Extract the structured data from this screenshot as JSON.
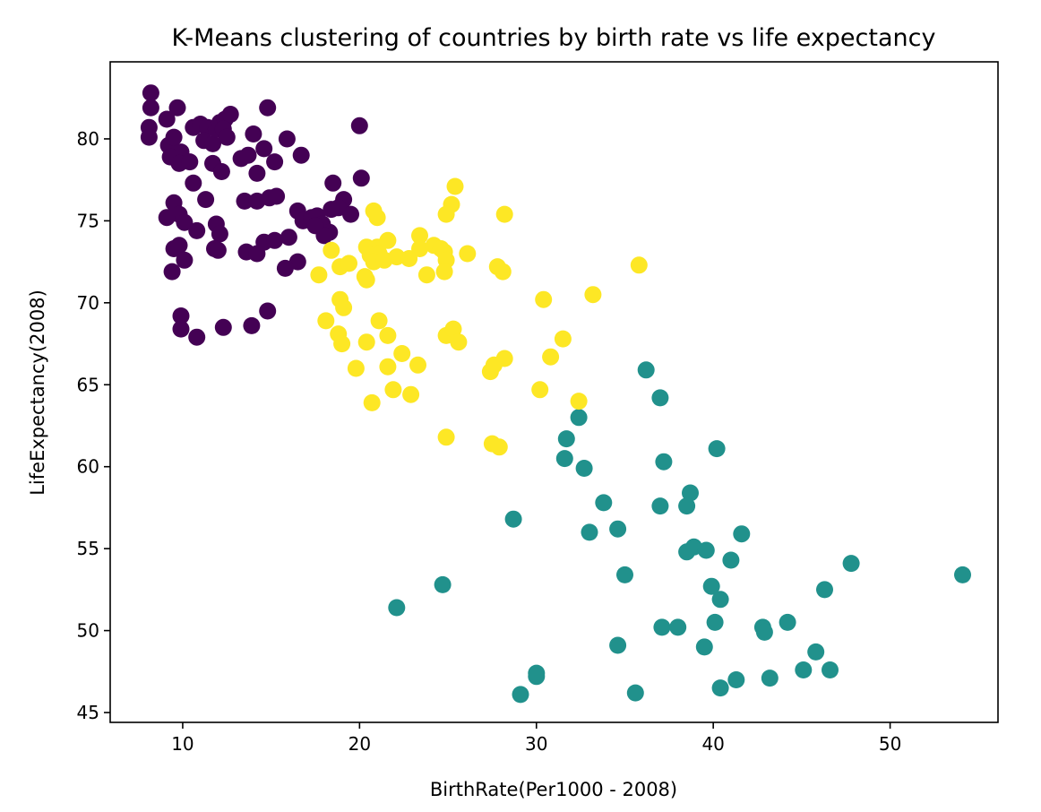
{
  "chart_data": {
    "type": "scatter",
    "title": "K-Means clustering of countries by birth rate vs life expectancy",
    "xlabel": "BirthRate(Per1000 - 2008)",
    "ylabel": "LifeExpectancy(2008)",
    "xlim": [
      5.9,
      56.1
    ],
    "ylim": [
      44.4,
      84.7
    ],
    "xticks": [
      10,
      20,
      30,
      40,
      50
    ],
    "yticks": [
      45,
      50,
      55,
      60,
      65,
      70,
      75,
      80
    ],
    "grid": false,
    "legend": "none",
    "series": [
      {
        "cluster": 0,
        "color": "#440154",
        "points": [
          [
            8.2,
            82.8
          ],
          [
            8.2,
            81.9
          ],
          [
            8.1,
            80.7
          ],
          [
            8.1,
            80.1
          ],
          [
            9.1,
            81.2
          ],
          [
            9.7,
            81.9
          ],
          [
            9.2,
            79.6
          ],
          [
            9.5,
            80.1
          ],
          [
            9.9,
            79.2
          ],
          [
            9.3,
            78.9
          ],
          [
            9.8,
            78.5
          ],
          [
            10.4,
            78.6
          ],
          [
            10.6,
            80.7
          ],
          [
            11.0,
            80.9
          ],
          [
            11.4,
            80.7
          ],
          [
            11.2,
            79.9
          ],
          [
            11.7,
            79.7
          ],
          [
            11.9,
            80.6
          ],
          [
            12.1,
            81.0
          ],
          [
            12.4,
            81.2
          ],
          [
            12.7,
            81.5
          ],
          [
            12.3,
            80.6
          ],
          [
            12.5,
            80.1
          ],
          [
            11.7,
            78.5
          ],
          [
            12.2,
            78.0
          ],
          [
            13.3,
            78.8
          ],
          [
            13.7,
            79.0
          ],
          [
            14.0,
            80.3
          ],
          [
            14.6,
            79.4
          ],
          [
            15.2,
            78.6
          ],
          [
            14.8,
            81.9
          ],
          [
            15.9,
            80.0
          ],
          [
            16.7,
            79.0
          ],
          [
            14.2,
            77.9
          ],
          [
            10.6,
            77.3
          ],
          [
            11.3,
            76.3
          ],
          [
            9.5,
            76.1
          ],
          [
            9.8,
            75.4
          ],
          [
            9.1,
            75.2
          ],
          [
            10.1,
            74.9
          ],
          [
            10.8,
            74.4
          ],
          [
            11.9,
            74.8
          ],
          [
            12.1,
            74.2
          ],
          [
            11.8,
            73.3
          ],
          [
            12.0,
            73.2
          ],
          [
            9.5,
            73.3
          ],
          [
            9.8,
            73.5
          ],
          [
            10.1,
            72.6
          ],
          [
            9.4,
            71.9
          ],
          [
            13.5,
            76.2
          ],
          [
            14.2,
            76.2
          ],
          [
            14.9,
            76.4
          ],
          [
            15.3,
            76.5
          ],
          [
            16.5,
            75.6
          ],
          [
            16.8,
            75.0
          ],
          [
            17.3,
            75.2
          ],
          [
            17.6,
            75.3
          ],
          [
            17.9,
            74.8
          ],
          [
            18.3,
            74.3
          ],
          [
            18.0,
            74.1
          ],
          [
            17.5,
            74.7
          ],
          [
            18.5,
            77.3
          ],
          [
            19.1,
            76.3
          ],
          [
            18.8,
            75.8
          ],
          [
            19.5,
            75.4
          ],
          [
            18.4,
            75.7
          ],
          [
            20.1,
            77.6
          ],
          [
            20.0,
            80.8
          ],
          [
            13.6,
            73.1
          ],
          [
            14.2,
            73.0
          ],
          [
            14.6,
            73.7
          ],
          [
            15.2,
            73.8
          ],
          [
            16.0,
            74.0
          ],
          [
            16.5,
            72.5
          ],
          [
            15.8,
            72.1
          ],
          [
            9.9,
            69.2
          ],
          [
            9.9,
            68.4
          ],
          [
            10.8,
            67.9
          ],
          [
            12.3,
            68.5
          ],
          [
            13.9,
            68.6
          ],
          [
            14.8,
            69.5
          ]
        ]
      },
      {
        "cluster": 1,
        "color": "#21918c",
        "points": [
          [
            36.2,
            65.9
          ],
          [
            37.0,
            64.2
          ],
          [
            32.4,
            63.0
          ],
          [
            31.7,
            61.7
          ],
          [
            31.6,
            60.5
          ],
          [
            32.7,
            59.9
          ],
          [
            37.2,
            60.3
          ],
          [
            40.2,
            61.1
          ],
          [
            33.8,
            57.8
          ],
          [
            37.0,
            57.6
          ],
          [
            38.7,
            58.4
          ],
          [
            38.5,
            57.6
          ],
          [
            28.7,
            56.8
          ],
          [
            33.0,
            56.0
          ],
          [
            34.6,
            56.2
          ],
          [
            38.5,
            54.8
          ],
          [
            38.9,
            55.1
          ],
          [
            39.6,
            54.9
          ],
          [
            41.6,
            55.9
          ],
          [
            41.0,
            54.3
          ],
          [
            35.0,
            53.4
          ],
          [
            39.9,
            52.7
          ],
          [
            40.4,
            51.9
          ],
          [
            46.3,
            52.5
          ],
          [
            47.8,
            54.1
          ],
          [
            54.1,
            53.4
          ],
          [
            24.7,
            52.8
          ],
          [
            22.1,
            51.4
          ],
          [
            37.1,
            50.2
          ],
          [
            38.0,
            50.2
          ],
          [
            40.1,
            50.5
          ],
          [
            42.8,
            50.2
          ],
          [
            42.9,
            49.9
          ],
          [
            44.2,
            50.5
          ],
          [
            34.6,
            49.1
          ],
          [
            39.5,
            49.0
          ],
          [
            45.8,
            48.7
          ],
          [
            45.1,
            47.6
          ],
          [
            46.6,
            47.6
          ],
          [
            41.3,
            47.0
          ],
          [
            43.2,
            47.1
          ],
          [
            30.0,
            47.4
          ],
          [
            30.0,
            47.2
          ],
          [
            29.1,
            46.1
          ],
          [
            35.6,
            46.2
          ],
          [
            40.4,
            46.5
          ]
        ]
      },
      {
        "cluster": 2,
        "color": "#fde725",
        "points": [
          [
            25.4,
            77.1
          ],
          [
            25.2,
            76.0
          ],
          [
            24.9,
            75.4
          ],
          [
            28.2,
            75.4
          ],
          [
            20.8,
            75.6
          ],
          [
            21.0,
            75.2
          ],
          [
            20.4,
            73.4
          ],
          [
            21.0,
            73.4
          ],
          [
            21.6,
            73.8
          ],
          [
            21.1,
            73.0
          ],
          [
            20.6,
            72.9
          ],
          [
            20.8,
            72.5
          ],
          [
            21.4,
            72.6
          ],
          [
            22.1,
            72.8
          ],
          [
            22.8,
            72.7
          ],
          [
            23.4,
            74.1
          ],
          [
            23.4,
            73.3
          ],
          [
            24.2,
            73.5
          ],
          [
            24.6,
            73.3
          ],
          [
            24.8,
            73.1
          ],
          [
            24.9,
            72.6
          ],
          [
            24.8,
            71.9
          ],
          [
            23.8,
            71.7
          ],
          [
            26.1,
            73.0
          ],
          [
            27.8,
            72.2
          ],
          [
            28.1,
            71.9
          ],
          [
            35.8,
            72.3
          ],
          [
            18.4,
            73.2
          ],
          [
            18.9,
            72.2
          ],
          [
            19.4,
            72.4
          ],
          [
            17.7,
            71.7
          ],
          [
            20.4,
            71.4
          ],
          [
            20.3,
            71.6
          ],
          [
            30.4,
            70.2
          ],
          [
            33.2,
            70.5
          ],
          [
            18.9,
            70.2
          ],
          [
            19.1,
            69.7
          ],
          [
            18.1,
            68.9
          ],
          [
            21.1,
            68.9
          ],
          [
            18.8,
            68.1
          ],
          [
            19.0,
            67.5
          ],
          [
            20.4,
            67.6
          ],
          [
            21.6,
            68.0
          ],
          [
            24.9,
            68.0
          ],
          [
            25.3,
            68.4
          ],
          [
            25.6,
            67.6
          ],
          [
            31.5,
            67.8
          ],
          [
            19.8,
            66.0
          ],
          [
            21.6,
            66.1
          ],
          [
            22.4,
            66.9
          ],
          [
            23.3,
            66.2
          ],
          [
            27.4,
            65.8
          ],
          [
            27.6,
            66.2
          ],
          [
            28.2,
            66.6
          ],
          [
            30.8,
            66.7
          ],
          [
            21.9,
            64.7
          ],
          [
            22.9,
            64.4
          ],
          [
            20.7,
            63.9
          ],
          [
            30.2,
            64.7
          ],
          [
            32.4,
            64.0
          ],
          [
            24.9,
            61.8
          ],
          [
            27.5,
            61.4
          ],
          [
            27.9,
            61.2
          ]
        ]
      }
    ]
  }
}
